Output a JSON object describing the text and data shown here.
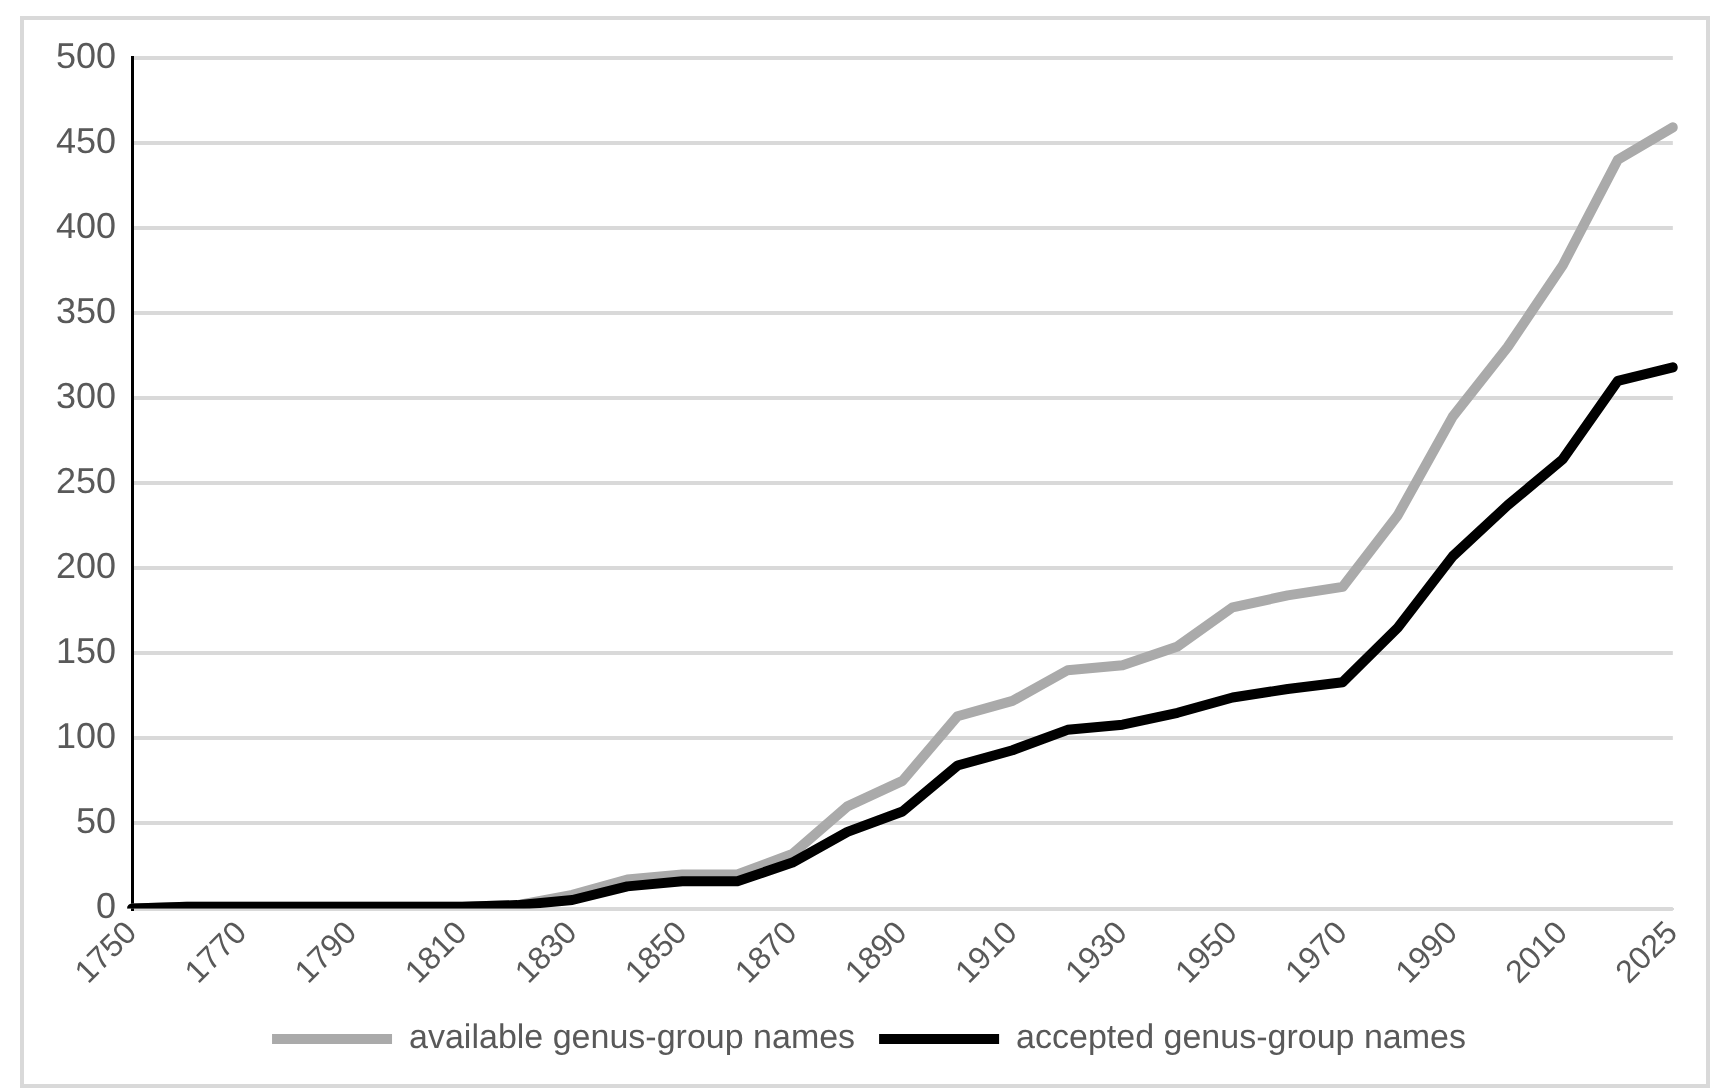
{
  "chart_data": {
    "type": "line",
    "categories": [
      "1750",
      null,
      "1770",
      null,
      "1790",
      null,
      "1810",
      null,
      "1830",
      null,
      "1850",
      null,
      "1870",
      null,
      "1890",
      null,
      "1910",
      null,
      "1930",
      null,
      "1950",
      null,
      "1970",
      null,
      "1990",
      null,
      "2010",
      null,
      "2025"
    ],
    "series": [
      {
        "name": "available genus-group names",
        "color": "#aaaaaa",
        "values": [
          0,
          1,
          1,
          1,
          1,
          1,
          1,
          2,
          8,
          17,
          20,
          20,
          32,
          60,
          75,
          113,
          122,
          140,
          143,
          154,
          177,
          184,
          189,
          231,
          289,
          330,
          378,
          440,
          459
        ]
      },
      {
        "name": "accepted genus-group names",
        "color": "#000000",
        "values": [
          0,
          1,
          1,
          1,
          1,
          1,
          1,
          2,
          5,
          13,
          16,
          16,
          27,
          45,
          57,
          84,
          93,
          105,
          108,
          115,
          124,
          129,
          133,
          165,
          207,
          237,
          264,
          310,
          318
        ]
      }
    ],
    "ylim": [
      0,
      500
    ],
    "yticks": [
      0,
      50,
      100,
      150,
      200,
      250,
      300,
      350,
      400,
      450,
      500
    ],
    "grid": "y",
    "legend": "bottom",
    "marker": "none",
    "line_style": "solid"
  }
}
